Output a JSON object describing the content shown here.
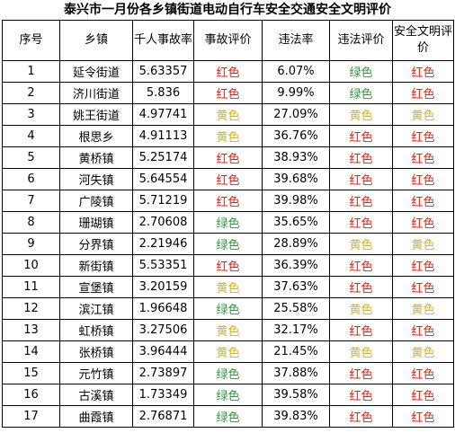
{
  "title": "泰兴市一月份各乡镇街道电动自行车安全交通安全文明评价",
  "headers": [
    "序号",
    "乡镇",
    "千人事故率",
    "事故评价",
    "违法率",
    "违法评价",
    "安全文明评价"
  ],
  "colors": {
    "红色": "#e8220d",
    "绿色": "#2d9a3a",
    "黄色": "#e0b400"
  },
  "rows": [
    {
      "no": "1",
      "town": "延令街道",
      "rate": "5.63357",
      "accident": "红色",
      "violation": "6.07%",
      "violation_eval": "绿色",
      "overall": "红色"
    },
    {
      "no": "2",
      "town": "济川街道",
      "rate": "5.836",
      "accident": "红色",
      "violation": "9.99%",
      "violation_eval": "绿色",
      "overall": "红色"
    },
    {
      "no": "3",
      "town": "姚王街道",
      "rate": "4.97741",
      "accident": "黄色",
      "violation": "27.09%",
      "violation_eval": "黄色",
      "overall": "黄色"
    },
    {
      "no": "4",
      "town": "根思乡",
      "rate": "4.91113",
      "accident": "黄色",
      "violation": "36.76%",
      "violation_eval": "红色",
      "overall": "红色"
    },
    {
      "no": "5",
      "town": "黄桥镇",
      "rate": "5.25174",
      "accident": "红色",
      "violation": "38.93%",
      "violation_eval": "红色",
      "overall": "红色"
    },
    {
      "no": "6",
      "town": "河失镇",
      "rate": "5.64554",
      "accident": "红色",
      "violation": "39.68%",
      "violation_eval": "红色",
      "overall": "红色"
    },
    {
      "no": "7",
      "town": "广陵镇",
      "rate": "5.71219",
      "accident": "红色",
      "violation": "39.98%",
      "violation_eval": "红色",
      "overall": "红色"
    },
    {
      "no": "8",
      "town": "珊瑚镇",
      "rate": "2.70608",
      "accident": "绿色",
      "violation": "35.65%",
      "violation_eval": "红色",
      "overall": "红色"
    },
    {
      "no": "9",
      "town": "分界镇",
      "rate": "2.21946",
      "accident": "绿色",
      "violation": "28.89%",
      "violation_eval": "黄色",
      "overall": "黄色"
    },
    {
      "no": "10",
      "town": "新街镇",
      "rate": "5.53351",
      "accident": "红色",
      "violation": "36.39%",
      "violation_eval": "红色",
      "overall": "红色"
    },
    {
      "no": "11",
      "town": "宣堡镇",
      "rate": "3.20159",
      "accident": "黄色",
      "violation": "37.63%",
      "violation_eval": "红色",
      "overall": "红色"
    },
    {
      "no": "12",
      "town": "滨江镇",
      "rate": "1.96648",
      "accident": "绿色",
      "violation": "25.58%",
      "violation_eval": "黄色",
      "overall": "黄色"
    },
    {
      "no": "13",
      "town": "虹桥镇",
      "rate": "3.27506",
      "accident": "黄色",
      "violation": "32.17%",
      "violation_eval": "红色",
      "overall": "红色"
    },
    {
      "no": "14",
      "town": "张桥镇",
      "rate": "3.96444",
      "accident": "黄色",
      "violation": "21.45%",
      "violation_eval": "黄色",
      "overall": "黄色"
    },
    {
      "no": "15",
      "town": "元竹镇",
      "rate": "2.73897",
      "accident": "绿色",
      "violation": "37.88%",
      "violation_eval": "红色",
      "overall": "红色"
    },
    {
      "no": "16",
      "town": "古溪镇",
      "rate": "1.73349",
      "accident": "绿色",
      "violation": "39.58%",
      "violation_eval": "红色",
      "overall": "红色"
    },
    {
      "no": "17",
      "town": "曲霞镇",
      "rate": "2.76871",
      "accident": "绿色",
      "violation": "39.83%",
      "violation_eval": "红色",
      "overall": "红色"
    }
  ]
}
